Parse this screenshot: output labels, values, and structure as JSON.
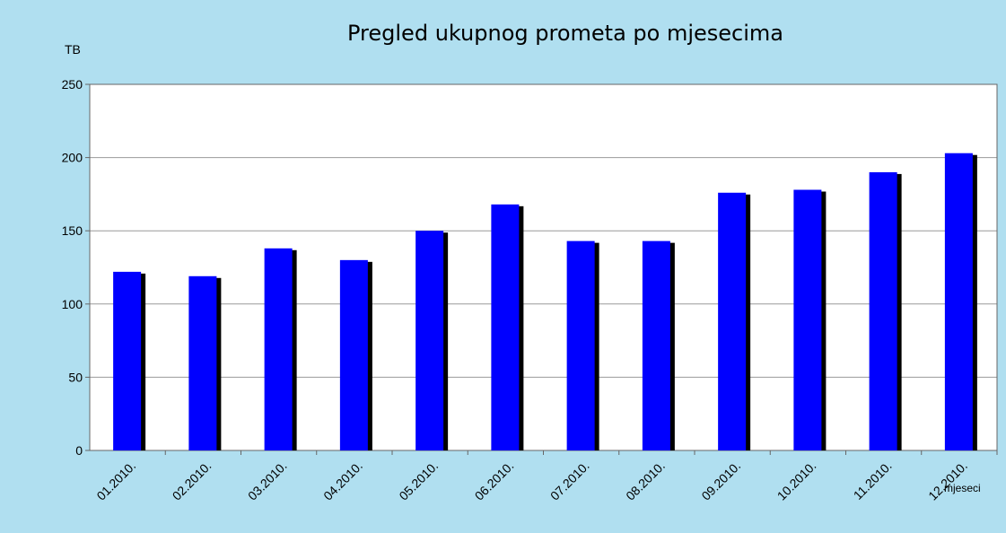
{
  "chart_data": {
    "type": "bar",
    "title": "Pregled ukupnog prometa po mjesecima",
    "y_label": "TB",
    "x_label": "mjeseci",
    "categories": [
      "01.2010.",
      "02.2010.",
      "03.2010.",
      "04.2010.",
      "05.2010.",
      "06.2010.",
      "07.2010.",
      "08.2010.",
      "09.2010.",
      "10.2010.",
      "11.2010.",
      "12.2010."
    ],
    "values": [
      122,
      119,
      138,
      130,
      150,
      168,
      143,
      143,
      176,
      178,
      190,
      203
    ],
    "color": "#0000ff",
    "ylim": [
      0,
      250
    ],
    "yticks": [
      0,
      50,
      100,
      150,
      200,
      250
    ],
    "grid": true
  }
}
